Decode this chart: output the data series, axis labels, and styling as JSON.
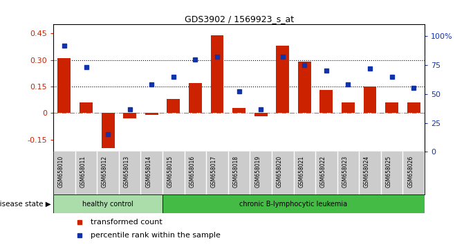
{
  "title": "GDS3902 / 1569923_s_at",
  "samples": [
    "GSM658010",
    "GSM658011",
    "GSM658012",
    "GSM658013",
    "GSM658014",
    "GSM658015",
    "GSM658016",
    "GSM658017",
    "GSM658018",
    "GSM658019",
    "GSM658020",
    "GSM658021",
    "GSM658022",
    "GSM658023",
    "GSM658024",
    "GSM658025",
    "GSM658026"
  ],
  "bar_values": [
    0.31,
    0.06,
    -0.2,
    -0.03,
    -0.01,
    0.08,
    0.17,
    0.44,
    0.03,
    -0.02,
    0.38,
    0.29,
    0.13,
    0.06,
    0.15,
    0.06,
    0.06
  ],
  "dot_values": [
    0.92,
    0.73,
    0.15,
    0.37,
    0.58,
    0.65,
    0.8,
    0.82,
    0.52,
    0.37,
    0.82,
    0.75,
    0.7,
    0.58,
    0.72,
    0.65,
    0.55
  ],
  "bar_color": "#cc2200",
  "dot_color": "#1133aa",
  "healthy_count": 5,
  "ylim_left": [
    -0.22,
    0.5
  ],
  "ylim_right": [
    0,
    1.1
  ],
  "yticks_left": [
    -0.15,
    0.0,
    0.15,
    0.3,
    0.45
  ],
  "ytick_labels_left": [
    "-0.15",
    "0",
    "0.15",
    "0.30",
    "0.45"
  ],
  "yticks_right": [
    0.0,
    0.25,
    0.5,
    0.75,
    1.0
  ],
  "ytick_labels_right": [
    "0",
    "25",
    "50",
    "75",
    "100%"
  ],
  "hlines": [
    0.15,
    0.3
  ],
  "healthy_label": "healthy control",
  "disease_label": "chronic B-lymphocytic leukemia",
  "legend1": "transformed count",
  "legend2": "percentile rank within the sample",
  "disease_state_label": "disease state",
  "healthy_color": "#aaddaa",
  "disease_color": "#44bb44",
  "tick_bg_color": "#cccccc"
}
